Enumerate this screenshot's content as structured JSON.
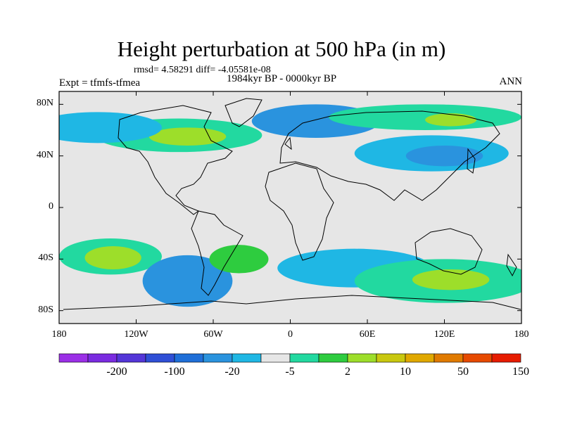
{
  "title": "Height perturbation at 500 hPa (in m)",
  "stats": "rmsd= 4.58291 diff= -4.05581e-08",
  "experiment": "Expt = tfmfs-tfmea",
  "period": "1984kyr BP - 0000kyr BP",
  "season": "ANN",
  "axes": {
    "lat_ticks": [
      "80N",
      "40N",
      "0",
      "40S",
      "80S"
    ],
    "lon_ticks": [
      "180",
      "120W",
      "60W",
      "0",
      "60E",
      "120E",
      "180"
    ]
  },
  "colorbar": {
    "colors": [
      "#9b2fe6",
      "#7a2be0",
      "#5436d8",
      "#2f4fd6",
      "#1f6fd8",
      "#2a93de",
      "#1fb7e4",
      "#e6e6e6",
      "#22d9a0",
      "#2ecc3f",
      "#9dde2a",
      "#c9c80f",
      "#e0a800",
      "#e07a00",
      "#e64a00",
      "#e61c00"
    ],
    "labels": [
      "-200",
      "-100",
      "-20",
      "-5",
      "2",
      "10",
      "50",
      "150"
    ]
  },
  "map_regions": [
    {
      "name": "north-atlantic-positive",
      "color": "#22d9a0",
      "cx": -87,
      "cy": 56,
      "rx": 65,
      "ry": 13
    },
    {
      "name": "north-atlantic-core",
      "color": "#9dde2a",
      "cx": -80,
      "cy": 55,
      "rx": 30,
      "ry": 7
    },
    {
      "name": "north-pacific-negative",
      "color": "#1fb7e4",
      "cx": -150,
      "cy": 62,
      "rx": 50,
      "ry": 12
    },
    {
      "name": "europe-negative-low",
      "color": "#2a93de",
      "cx": 20,
      "cy": 67,
      "rx": 50,
      "ry": 13
    },
    {
      "name": "asia-positive",
      "color": "#22d9a0",
      "cx": 105,
      "cy": 70,
      "rx": 75,
      "ry": 10
    },
    {
      "name": "asia-positive-core",
      "color": "#9dde2a",
      "cx": 125,
      "cy": 68,
      "rx": 20,
      "ry": 5
    },
    {
      "name": "japan-negative",
      "color": "#1fb7e4",
      "cx": 110,
      "cy": 42,
      "rx": 60,
      "ry": 14
    },
    {
      "name": "japan-negative-core",
      "color": "#2a93de",
      "cx": 120,
      "cy": 40,
      "rx": 30,
      "ry": 8
    },
    {
      "name": "south-pacific-positive",
      "color": "#22d9a0",
      "cx": -140,
      "cy": -38,
      "rx": 40,
      "ry": 14
    },
    {
      "name": "south-pacific-core",
      "color": "#9dde2a",
      "cx": -138,
      "cy": -39,
      "rx": 22,
      "ry": 9
    },
    {
      "name": "south-america-negative",
      "color": "#2a93de",
      "cx": -80,
      "cy": -57,
      "rx": 35,
      "ry": 20
    },
    {
      "name": "south-atlantic-positive",
      "color": "#2ecc3f",
      "cx": -40,
      "cy": -40,
      "rx": 23,
      "ry": 11
    },
    {
      "name": "indian-ocean-negative",
      "color": "#1fb7e4",
      "cx": 50,
      "cy": -47,
      "rx": 60,
      "ry": 15
    },
    {
      "name": "australia-positive",
      "color": "#22d9a0",
      "cx": 120,
      "cy": -57,
      "rx": 70,
      "ry": 17
    },
    {
      "name": "australia-positive-core",
      "color": "#9dde2a",
      "cx": 125,
      "cy": -56,
      "rx": 30,
      "ry": 8
    }
  ]
}
